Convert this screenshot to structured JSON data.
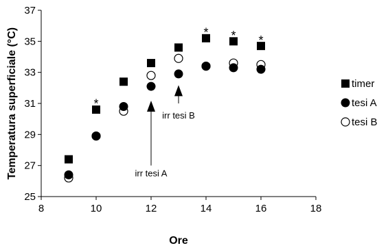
{
  "chart_data": {
    "type": "scatter",
    "title": "",
    "xlabel": "Ore",
    "ylabel": "Temperatura superficiale (°C)",
    "xlim": [
      8,
      18
    ],
    "ylim": [
      25,
      37
    ],
    "xticks": [
      "8",
      "10",
      "12",
      "14",
      "16",
      "18"
    ],
    "yticks": [
      "25",
      "27",
      "29",
      "31",
      "33",
      "35",
      "37"
    ],
    "grid": false,
    "legend_position": "right",
    "series": [
      {
        "name": "timer",
        "marker": "filled-square",
        "x": [
          9,
          10,
          11,
          12,
          13,
          14,
          15,
          16
        ],
        "y": [
          27.4,
          30.6,
          32.4,
          33.6,
          34.6,
          35.2,
          35.0,
          34.7
        ]
      },
      {
        "name": "tesi A",
        "marker": "filled-circle",
        "x": [
          9,
          10,
          11,
          12,
          13,
          14,
          15,
          16
        ],
        "y": [
          26.4,
          28.9,
          30.8,
          32.1,
          32.9,
          33.4,
          33.3,
          33.2
        ]
      },
      {
        "name": "tesi B",
        "marker": "open-circle",
        "x": [
          9,
          10,
          11,
          12,
          13,
          14,
          15,
          16
        ],
        "y": [
          26.2,
          28.9,
          30.5,
          32.8,
          33.9,
          33.4,
          33.6,
          33.5
        ]
      }
    ],
    "significance_marks": [
      {
        "x": 10,
        "y": 31.1,
        "label": "*"
      },
      {
        "x": 14,
        "y": 35.7,
        "label": "*"
      },
      {
        "x": 15,
        "y": 35.5,
        "label": "*"
      },
      {
        "x": 16,
        "y": 35.2,
        "label": "*"
      }
    ],
    "annotations": [
      {
        "label": "irr tesi A",
        "x": 12,
        "arrow_tip_y": 31.0,
        "arrow_base_y": 27.0
      },
      {
        "label": "irr tesi B",
        "x": 13,
        "arrow_tip_y": 32.0,
        "arrow_base_y": 31.0
      }
    ]
  }
}
